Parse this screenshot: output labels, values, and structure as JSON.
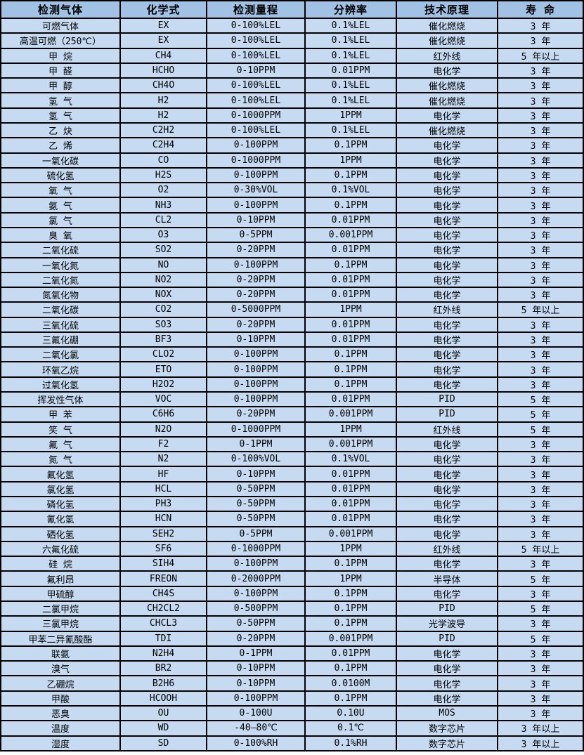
{
  "colors": {
    "header_bg": "#a1c1e5",
    "row_bg": "#c6daf2",
    "border": "#000000",
    "text": "#000000"
  },
  "table": {
    "headers": [
      "检测气体",
      "化学式",
      "检测量程",
      "分辨率",
      "技术原理",
      "寿 命"
    ],
    "rows": [
      [
        "可燃气体",
        "EX",
        "0-100%LEL",
        "0.1%LEL",
        "催化燃烧",
        "3 年"
      ],
      [
        "高温可燃（250℃）",
        "EX",
        "0-100%LEL",
        "0.1%LEL",
        "催化燃烧",
        "3 年"
      ],
      [
        "甲 烷",
        "CH4",
        "0-100%LEL",
        "0.1%LEL",
        "红外线",
        "5 年以上"
      ],
      [
        "甲 醛",
        "HCHO",
        "0-10PPM",
        "0.01PPM",
        "电化学",
        "3 年"
      ],
      [
        "甲 醇",
        "CH4O",
        "0-100%LEL",
        "0.1%LEL",
        "催化燃烧",
        "3 年"
      ],
      [
        "氢 气",
        "H2",
        "0-100%LEL",
        "0.1%LEL",
        "催化燃烧",
        "3 年"
      ],
      [
        "氢 气",
        "H2",
        "0-1000PPM",
        "1PPM",
        "电化学",
        "3 年"
      ],
      [
        "乙 炔",
        "C2H2",
        "0-100%LEL",
        "0.1%LEL",
        "催化燃烧",
        "3 年"
      ],
      [
        "乙 烯",
        "C2H4",
        "0-100PPM",
        "0.1PPM",
        "电化学",
        "3 年"
      ],
      [
        "一氧化碳",
        "CO",
        "0-1000PPM",
        "1PPM",
        "电化学",
        "3 年"
      ],
      [
        "硫化氢",
        "H2S",
        "0-100PPM",
        "0.1PPM",
        "电化学",
        "3 年"
      ],
      [
        "氧 气",
        "O2",
        "0-30%VOL",
        "0.1%VOL",
        "电化学",
        "3 年"
      ],
      [
        "氨 气",
        "NH3",
        "0-100PPM",
        "0.1PPM",
        "电化学",
        "3 年"
      ],
      [
        "氯 气",
        "CL2",
        "0-10PPM",
        "0.01PPM",
        "电化学",
        "3 年"
      ],
      [
        "臭 氧",
        "O3",
        "0-5PPM",
        "0.001PPM",
        "电化学",
        "3 年"
      ],
      [
        "二氧化硫",
        "SO2",
        "0-20PPM",
        "0.01PPM",
        "电化学",
        "3 年"
      ],
      [
        "一氧化氮",
        "NO",
        "0-100PPM",
        "0.1PPM",
        "电化学",
        "3 年"
      ],
      [
        "二氧化氮",
        "NO2",
        "0-20PPM",
        "0.01PPM",
        "电化学",
        "3 年"
      ],
      [
        "氮氧化物",
        "NOX",
        "0-20PPM",
        "0.01PPM",
        "电化学",
        "3 年"
      ],
      [
        "二氧化碳",
        "CO2",
        "0-5000PPM",
        "1PPM",
        "红外线",
        "5 年以上"
      ],
      [
        "三氧化硫",
        "SO3",
        "0-20PPM",
        "0.01PPM",
        "电化学",
        "3 年"
      ],
      [
        "三氟化硼",
        "BF3",
        "0-10PPM",
        "0.01PPM",
        "电化学",
        "3 年"
      ],
      [
        "二氧化氯",
        "CLO2",
        "0-100PPM",
        "0.1PPM",
        "电化学",
        "3 年"
      ],
      [
        "环氧乙烷",
        "ETO",
        "0-100PPM",
        "0.1PPM",
        "电化学",
        "3 年"
      ],
      [
        "过氧化氢",
        "H2O2",
        "0-100PPM",
        "0.1PPM",
        "电化学",
        "3 年"
      ],
      [
        "挥发性气体",
        "VOC",
        "0-100PPM",
        "0.01PPM",
        "PID",
        "5 年"
      ],
      [
        "甲 苯",
        "C6H6",
        "0-20PPM",
        "0.001PPM",
        "PID",
        "5 年"
      ],
      [
        "笑 气",
        "N2O",
        "0-1000PPM",
        "1PPM",
        "红外线",
        "5 年"
      ],
      [
        "氟 气",
        "F2",
        "0-1PPM",
        "0.001PPM",
        "电化学",
        "3 年"
      ],
      [
        "氮 气",
        "N2",
        "0-100%VOL",
        "0.1%VOL",
        "电化学",
        "3 年"
      ],
      [
        "氟化氢",
        "HF",
        "0-10PPM",
        "0.01PPM",
        "电化学",
        "3 年"
      ],
      [
        "氯化氢",
        "HCL",
        "0-50PPM",
        "0.01PPM",
        "电化学",
        "3 年"
      ],
      [
        "磷化氢",
        "PH3",
        "0-50PPM",
        "0.01PPM",
        "电化学",
        "3 年"
      ],
      [
        "氰化氢",
        "HCN",
        "0-50PPM",
        "0.01PPM",
        "电化学",
        "3 年"
      ],
      [
        "硒化氢",
        "SEH2",
        "0-5PPM",
        "0.001PPM",
        "电化学",
        "3 年"
      ],
      [
        "六氟化硫",
        "SF6",
        "0-1000PPM",
        "1PPM",
        "红外线",
        "5 年以上"
      ],
      [
        "硅 烷",
        "SIH4",
        "0-100PPM",
        "0.1PPM",
        "电化学",
        "3 年"
      ],
      [
        "氟利昂",
        "FREON",
        "0-2000PPM",
        "1PPM",
        "半导体",
        "5 年"
      ],
      [
        "甲硫醇",
        "CH4S",
        "0-100PPM",
        "0.1PPM",
        "电化学",
        "3 年"
      ],
      [
        "二氯甲烷",
        "CH2CL2",
        "0-500PPM",
        "0.1PPM",
        "PID",
        "5 年"
      ],
      [
        "三氯甲烷",
        "CHCL3",
        "0-50PPM",
        "0.1PPM",
        "光学波导",
        "3 年"
      ],
      [
        "甲苯二异氰酸酯",
        "TDI",
        "0-20PPM",
        "0.001PPM",
        "PID",
        "5 年"
      ],
      [
        "联氨",
        "N2H4",
        "0-1PPM",
        "0.01PPM",
        "电化学",
        "3 年"
      ],
      [
        "溴气",
        "BR2",
        "0-10PPM",
        "0.1PPM",
        "电化学",
        "3 年"
      ],
      [
        "乙硼烷",
        "B2H6",
        "0-10PPM",
        "0.0100M",
        "电化学",
        "3 年"
      ],
      [
        "甲酸",
        "HCOOH",
        "0-100PPM",
        "0.1PPM",
        "电化学",
        "3 年"
      ],
      [
        "恶臭",
        "OU",
        "0-100U",
        "0.10U",
        "MOS",
        "3 年"
      ],
      [
        "温度",
        "WD",
        "-40—80℃",
        "0.1℃",
        "数字芯片",
        "3 年以上"
      ],
      [
        "湿度",
        "SD",
        "0-100%RH",
        "0.1%RH",
        "数字芯片",
        "3 年以上"
      ]
    ]
  }
}
